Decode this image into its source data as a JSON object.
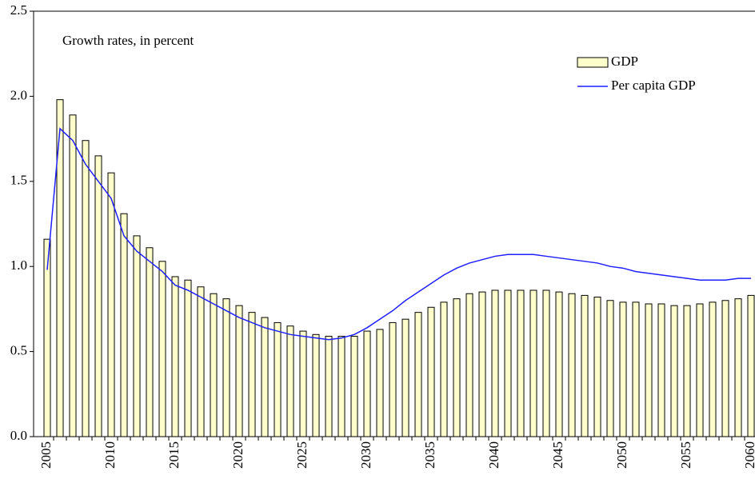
{
  "chart_data": {
    "type": "bar_line",
    "annotation": "Growth rates, in percent",
    "categories": [
      "2005",
      null,
      null,
      null,
      null,
      "2010",
      null,
      null,
      null,
      null,
      "2015",
      null,
      null,
      null,
      null,
      "2020",
      null,
      null,
      null,
      null,
      "2025",
      null,
      null,
      null,
      null,
      "2030",
      null,
      null,
      null,
      null,
      "2035",
      null,
      null,
      null,
      null,
      "2040",
      null,
      null,
      null,
      null,
      "2045",
      null,
      null,
      null,
      null,
      "2050",
      null,
      null,
      null,
      null,
      "2055",
      null,
      null,
      null,
      null,
      "2060"
    ],
    "series": [
      {
        "name": "GDP",
        "type": "bar",
        "color": "#ffffcc",
        "values": [
          1.16,
          1.98,
          1.89,
          1.74,
          1.65,
          1.55,
          1.31,
          1.18,
          1.11,
          1.03,
          0.94,
          0.92,
          0.88,
          0.84,
          0.81,
          0.77,
          0.73,
          0.7,
          0.67,
          0.65,
          0.62,
          0.6,
          0.59,
          0.59,
          0.59,
          0.62,
          0.63,
          0.67,
          0.69,
          0.73,
          0.76,
          0.79,
          0.81,
          0.84,
          0.85,
          0.86,
          0.86,
          0.86,
          0.86,
          0.86,
          0.85,
          0.84,
          0.83,
          0.82,
          0.8,
          0.79,
          0.79,
          0.78,
          0.78,
          0.77,
          0.77,
          0.78,
          0.79,
          0.8,
          0.81,
          0.83
        ]
      },
      {
        "name": "Per capita GDP",
        "type": "line",
        "color": "#1f1fff",
        "values": [
          0.98,
          1.81,
          1.74,
          1.6,
          1.5,
          1.4,
          1.18,
          1.09,
          1.03,
          0.97,
          0.89,
          0.86,
          0.82,
          0.78,
          0.74,
          0.7,
          0.67,
          0.64,
          0.62,
          0.6,
          0.59,
          0.58,
          0.57,
          0.58,
          0.6,
          0.64,
          0.69,
          0.74,
          0.8,
          0.85,
          0.9,
          0.95,
          0.99,
          1.02,
          1.04,
          1.06,
          1.07,
          1.07,
          1.07,
          1.06,
          1.05,
          1.04,
          1.03,
          1.02,
          1.0,
          0.99,
          0.97,
          0.96,
          0.95,
          0.94,
          0.93,
          0.92,
          0.92,
          0.92,
          0.93,
          0.93
        ]
      }
    ],
    "ylim": [
      0,
      2.5
    ],
    "yticks": [
      {
        "value": 0,
        "label": "0.0"
      },
      0.5,
      {
        "value": 1,
        "label": "1.0"
      },
      1.5,
      {
        "value": 2,
        "label": "2.0"
      },
      2.5
    ],
    "grid": false
  }
}
